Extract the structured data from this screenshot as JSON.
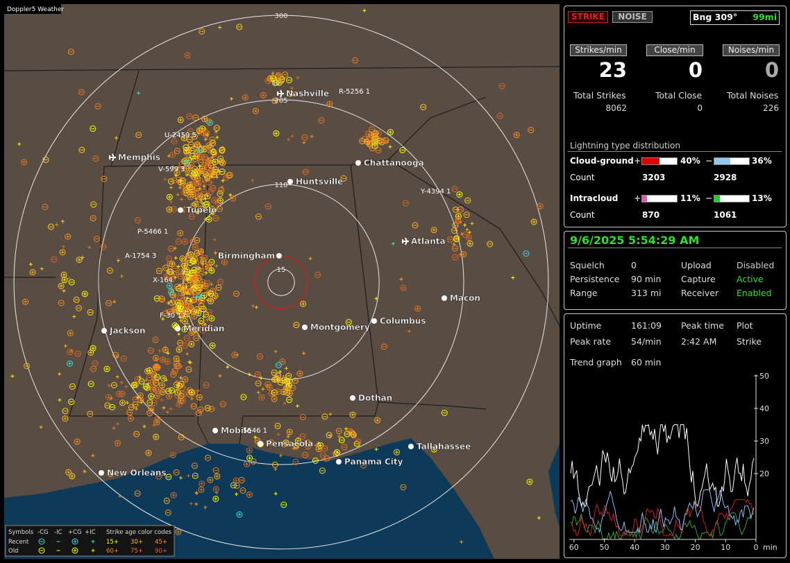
{
  "window": {
    "title": "Doppler5 Weather"
  },
  "map": {
    "range_rings": [
      300,
      205,
      110,
      15
    ],
    "cities": [
      "Nashville",
      "Memphis",
      "Chattanooga",
      "Huntsville",
      "Tupelo",
      "Birmingham",
      "Atlanta",
      "Macon",
      "Jackson",
      "Meridian",
      "Montgomery",
      "Columbus",
      "Dothan",
      "Mobile",
      "Pensacola",
      "Panama City",
      "Tallahassee",
      "New Orleans"
    ],
    "storms": [
      "R-5256 1",
      "U-2459 5",
      "V-599 3",
      "Y-4394 1",
      "P-5466 1",
      "A-1754 3",
      "X-164",
      "F-30 13",
      "5546 1"
    ]
  },
  "legend": {
    "symbols": "Symbols",
    "columns": [
      "-CG",
      "-IC",
      "+CG",
      "+IC"
    ],
    "age_title": "Strike age color codes",
    "rows": [
      {
        "label": "Recent",
        "ages": [
          "15+",
          "30+",
          "45+"
        ]
      },
      {
        "label": "Old",
        "ages": [
          "60+",
          "75+",
          "90+"
        ]
      }
    ]
  },
  "header": {
    "strike_button": "STRIKE",
    "noise_button": "NOISE",
    "bearing": "Bng 309°",
    "distance": "99mi"
  },
  "rates": [
    {
      "button": "Strikes/min",
      "value": 23,
      "total_label": "Total Strikes",
      "total": 8062
    },
    {
      "button": "Close/min",
      "value": 0,
      "total_label": "Total Close",
      "total": 0
    },
    {
      "button": "Noises/min",
      "value": 0,
      "total_label": "Total Noises",
      "total": 226
    }
  ],
  "distribution": {
    "title": "Lightning type distribution",
    "rows": [
      {
        "label": "Cloud-ground",
        "plus": "+",
        "plus_pct": "40%",
        "minus": "−",
        "minus_pct": "36%",
        "count_label": "Count",
        "plus_count": 3203,
        "minus_count": 2928
      },
      {
        "label": "Intracloud",
        "plus": "+",
        "plus_pct": "11%",
        "minus": "−",
        "minus_pct": "13%",
        "count_label": "Count",
        "plus_count": 870,
        "minus_count": 1061
      }
    ]
  },
  "status": {
    "datetime": "9/6/2025 5:54:29 AM",
    "rows": [
      [
        "Squelch",
        "0",
        "Upload",
        "Disabled"
      ],
      [
        "Persistence",
        "90 min",
        "Capture",
        "Active"
      ],
      [
        "Range",
        "313 mi",
        "Receiver",
        "Enabled"
      ]
    ]
  },
  "stats": {
    "rows": [
      [
        "Uptime",
        "161:09",
        "Peak time",
        "Plot"
      ],
      [
        "Peak rate",
        "54/min",
        "2:42 AM",
        "Strike"
      ]
    ],
    "trend_label": "Trend graph",
    "trend_period": "60 min",
    "y_ticks": [
      50,
      40,
      30,
      20
    ],
    "x_ticks": [
      60,
      50,
      40,
      30,
      20,
      10,
      0
    ],
    "x_unit": "min"
  }
}
